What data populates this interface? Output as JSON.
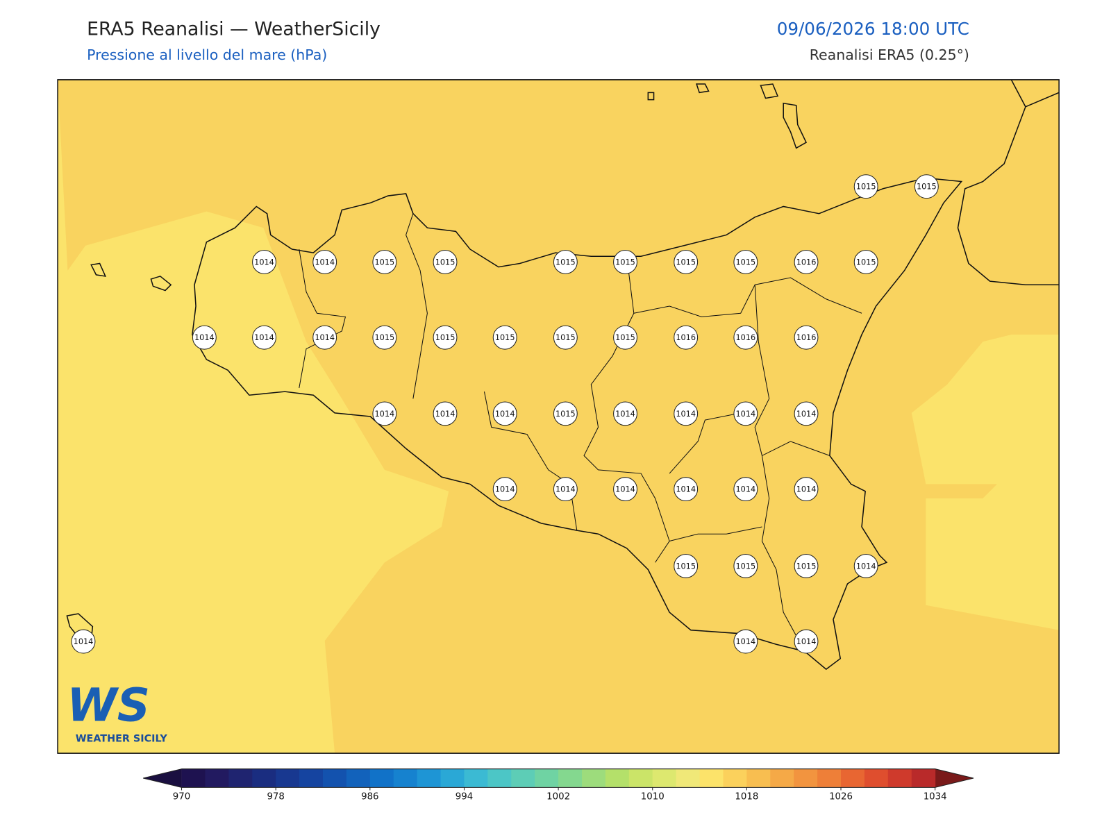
{
  "header": {
    "title": "ERA5 Reanalisi — WeatherSicily",
    "subtitle": "Pressione al livello del mare (hPa)",
    "datetime": "09/06/2026 18:00 UTC",
    "source": "Reanalisi ERA5 (0.25°)"
  },
  "map": {
    "stations": [
      1015,
      1015,
      1014,
      1014,
      1015,
      1015,
      1015,
      1015,
      1015,
      1015,
      1016,
      1015,
      1014,
      1014,
      1014,
      1015,
      1015,
      1015,
      1015,
      1015,
      1016,
      1016,
      1016,
      1014,
      1014,
      1014,
      1015,
      1014,
      1014,
      1014,
      1014,
      1014,
      1014,
      1014,
      1014,
      1014,
      1014,
      1015,
      1015,
      1015,
      1014,
      1014,
      1014,
      1014
    ]
  },
  "colorbar": {
    "levels": [
      970,
      972,
      974,
      976,
      978,
      980,
      982,
      984,
      986,
      988,
      990,
      992,
      994,
      996,
      998,
      1000,
      1002,
      1004,
      1006,
      1008,
      1010,
      1012,
      1014,
      1016,
      1018,
      1020,
      1022,
      1024,
      1026,
      1028,
      1030,
      1032,
      1034
    ],
    "colors": [
      "#1e1250",
      "#221a60",
      "#1f2470",
      "#1a2d80",
      "#183890",
      "#1544a0",
      "#1352ae",
      "#1262bb",
      "#1172c8",
      "#1682cf",
      "#1e95d5",
      "#2aa8d6",
      "#3bbad3",
      "#4cc6c6",
      "#5dcdb6",
      "#6fd3a3",
      "#84d88f",
      "#9ddc7c",
      "#b4e06a",
      "#cbe468",
      "#dde86f",
      "#f0e878",
      "#fce36a",
      "#fbd15c",
      "#f8be50",
      "#f5a947",
      "#f2943f",
      "#ee7f38",
      "#e86632",
      "#df4e2e",
      "#cf3a2c",
      "#b92a2a"
    ],
    "under_color": "#1a0f40",
    "over_color": "#7a1a1a",
    "ticks": [
      970,
      978,
      986,
      994,
      1002,
      1010,
      1018,
      1026,
      1034
    ]
  },
  "logo": {
    "text": "WS",
    "caption": "WEATHER SICILY"
  }
}
